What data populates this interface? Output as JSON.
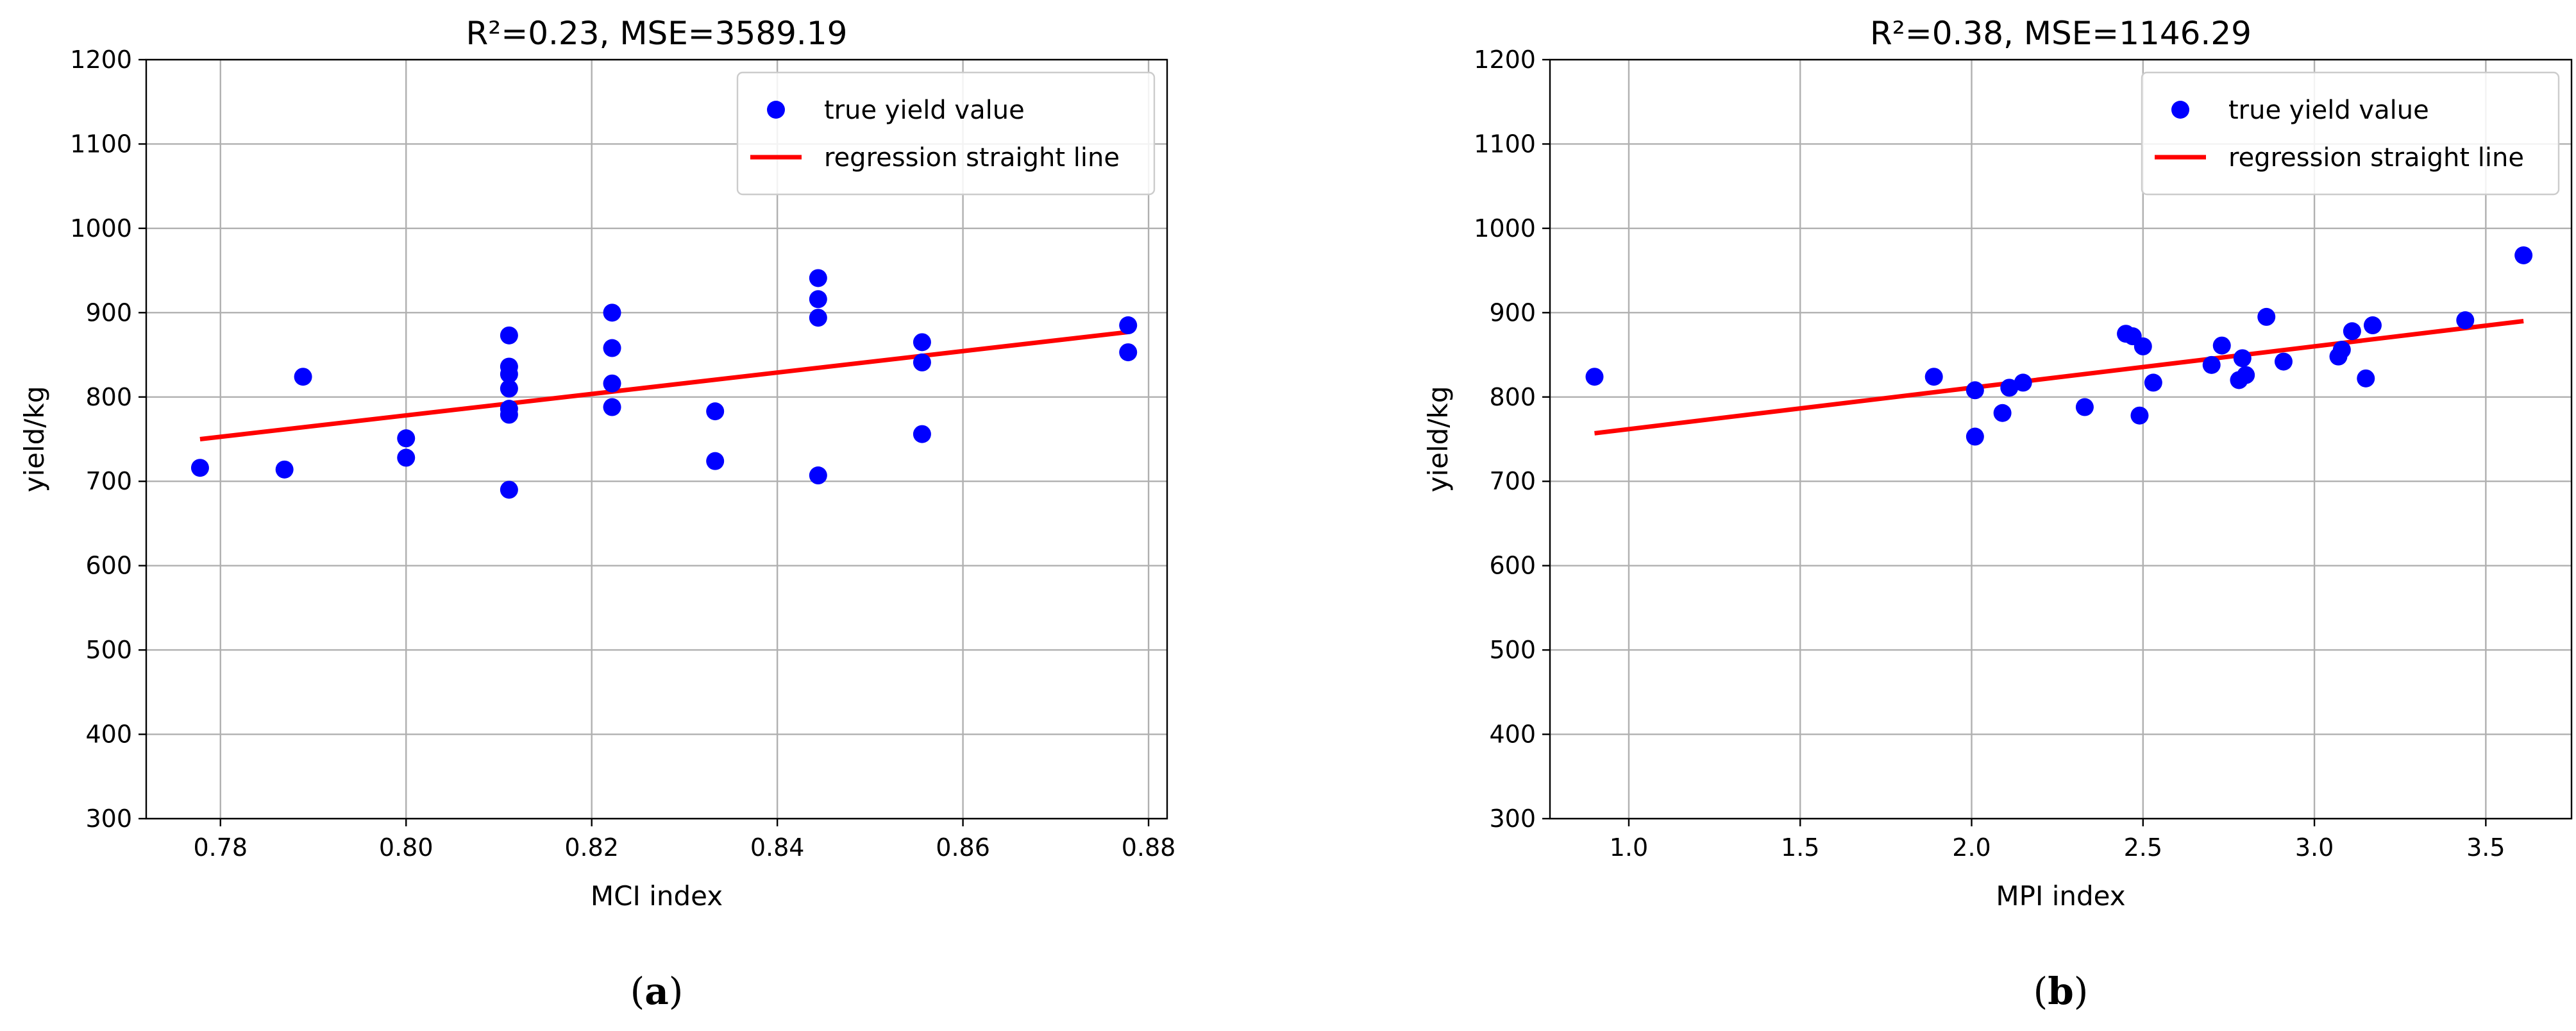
{
  "chart_data": [
    {
      "type": "scatter",
      "panel_prefix": "(",
      "panel_letter": "a",
      "panel_suffix": ")",
      "title": "R²=0.23, MSE=3589.19",
      "xlabel": "MCI index",
      "ylabel": "yield/kg",
      "xlim": [
        0.772,
        0.882
      ],
      "ylim": [
        300,
        1200
      ],
      "xticks": [
        0.78,
        0.8,
        0.82,
        0.84,
        0.86,
        0.88
      ],
      "xtick_labels": [
        "0.78",
        "0.80",
        "0.82",
        "0.84",
        "0.86",
        "0.88"
      ],
      "yticks": [
        300,
        400,
        500,
        600,
        700,
        800,
        900,
        1000,
        1100,
        1200
      ],
      "ytick_labels": [
        "300",
        "400",
        "500",
        "600",
        "700",
        "800",
        "900",
        "1000",
        "1100",
        "1200"
      ],
      "grid": true,
      "legend_position": "top-right",
      "series": [
        {
          "name": "true yield value",
          "kind": "scatter",
          "color": "#0000ff",
          "points": [
            [
              0.7778,
              716
            ],
            [
              0.7869,
              714
            ],
            [
              0.7889,
              824
            ],
            [
              0.8,
              751
            ],
            [
              0.8,
              728
            ],
            [
              0.8111,
              873
            ],
            [
              0.8111,
              836
            ],
            [
              0.8111,
              827
            ],
            [
              0.8111,
              810
            ],
            [
              0.8111,
              786
            ],
            [
              0.8111,
              779
            ],
            [
              0.8111,
              690
            ],
            [
              0.8222,
              900
            ],
            [
              0.8222,
              858
            ],
            [
              0.8222,
              816
            ],
            [
              0.8222,
              788
            ],
            [
              0.8333,
              783
            ],
            [
              0.8333,
              724
            ],
            [
              0.8444,
              941
            ],
            [
              0.8444,
              916
            ],
            [
              0.8444,
              894
            ],
            [
              0.8444,
              707
            ],
            [
              0.8556,
              865
            ],
            [
              0.8556,
              841
            ],
            [
              0.8556,
              756
            ],
            [
              0.8778,
              885
            ],
            [
              0.8778,
              853
            ]
          ]
        },
        {
          "name": "regression straight line",
          "kind": "line",
          "color": "#ff0000",
          "points": [
            [
              0.7778,
              750
            ],
            [
              0.8778,
              877
            ]
          ]
        }
      ]
    },
    {
      "type": "scatter",
      "panel_prefix": "(",
      "panel_letter": "b",
      "panel_suffix": ")",
      "title": "R²=0.38, MSE=1146.29",
      "xlabel": "MPI index",
      "ylabel": "yield/kg",
      "xlim": [
        0.77,
        3.75
      ],
      "ylim": [
        300,
        1200
      ],
      "xticks": [
        1.0,
        1.5,
        2.0,
        2.5,
        3.0,
        3.5
      ],
      "xtick_labels": [
        "1.0",
        "1.5",
        "2.0",
        "2.5",
        "3.0",
        "3.5"
      ],
      "yticks": [
        300,
        400,
        500,
        600,
        700,
        800,
        900,
        1000,
        1100,
        1200
      ],
      "ytick_labels": [
        "300",
        "400",
        "500",
        "600",
        "700",
        "800",
        "900",
        "1000",
        "1100",
        "1200"
      ],
      "grid": true,
      "legend_position": "top-right",
      "series": [
        {
          "name": "true yield value",
          "kind": "scatter",
          "color": "#0000ff",
          "points": [
            [
              0.9,
              824
            ],
            [
              1.89,
              824
            ],
            [
              2.01,
              808
            ],
            [
              2.01,
              753
            ],
            [
              2.09,
              781
            ],
            [
              2.11,
              811
            ],
            [
              2.15,
              817
            ],
            [
              2.33,
              788
            ],
            [
              2.45,
              875
            ],
            [
              2.47,
              872
            ],
            [
              2.49,
              778
            ],
            [
              2.5,
              860
            ],
            [
              2.53,
              817
            ],
            [
              2.7,
              838
            ],
            [
              2.73,
              861
            ],
            [
              2.78,
              820
            ],
            [
              2.79,
              846
            ],
            [
              2.8,
              826
            ],
            [
              2.86,
              895
            ],
            [
              2.91,
              842
            ],
            [
              3.07,
              848
            ],
            [
              3.08,
              856
            ],
            [
              3.11,
              878
            ],
            [
              3.15,
              822
            ],
            [
              3.17,
              885
            ],
            [
              3.44,
              891
            ],
            [
              3.61,
              968
            ]
          ]
        },
        {
          "name": "regression straight line",
          "kind": "line",
          "color": "#ff0000",
          "points": [
            [
              0.9,
              757
            ],
            [
              3.61,
              890
            ]
          ]
        }
      ]
    }
  ]
}
